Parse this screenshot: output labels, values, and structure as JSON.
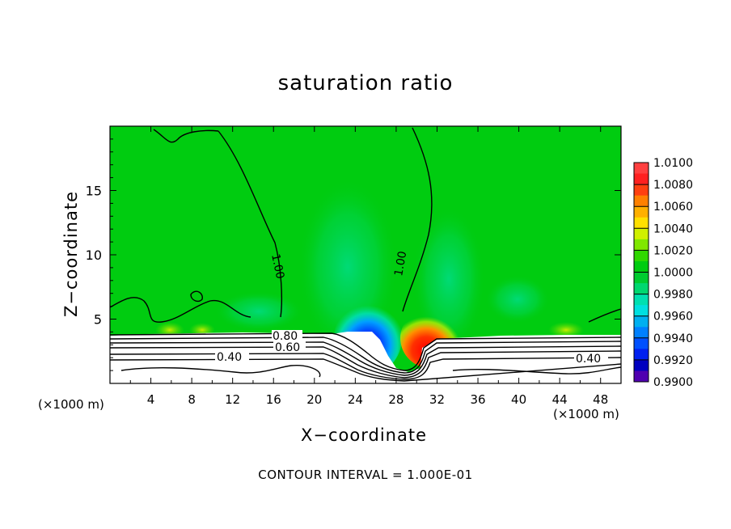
{
  "chart_data": {
    "type": "heatmap",
    "title": "saturation ratio",
    "xlabel": "X−coordinate",
    "ylabel": "Z−coordinate",
    "x_unit_left": "(×1000 m)",
    "x_unit_right": "(×1000 m)",
    "xlim": [
      0,
      50
    ],
    "ylim": [
      0,
      20
    ],
    "x_ticks": [
      4,
      8,
      12,
      16,
      20,
      24,
      28,
      32,
      36,
      40,
      44,
      48
    ],
    "y_ticks": [
      5,
      10,
      15
    ],
    "colorbar": {
      "labels": [
        "1.0100",
        "1.0080",
        "1.0060",
        "1.0040",
        "1.0020",
        "1.0000",
        "0.9980",
        "0.9960",
        "0.9940",
        "0.9920",
        "0.9900"
      ],
      "colors": [
        "#ff4040",
        "#ff2020",
        "#ff4010",
        "#ff8000",
        "#ffb000",
        "#ffe000",
        "#d0f000",
        "#80e800",
        "#30d800",
        "#00cc10",
        "#00cc30",
        "#00d870",
        "#00e0b0",
        "#00e0e0",
        "#00b0f0",
        "#0080ff",
        "#0050ff",
        "#0020f0",
        "#0000c0",
        "#5000b0"
      ]
    },
    "contour_labels": [
      "1.00",
      "1.00",
      "0.80",
      "0.60",
      "0.40",
      "0.40"
    ],
    "contour_interval_text": "CONTOUR INTERVAL =  1.000E-01"
  }
}
